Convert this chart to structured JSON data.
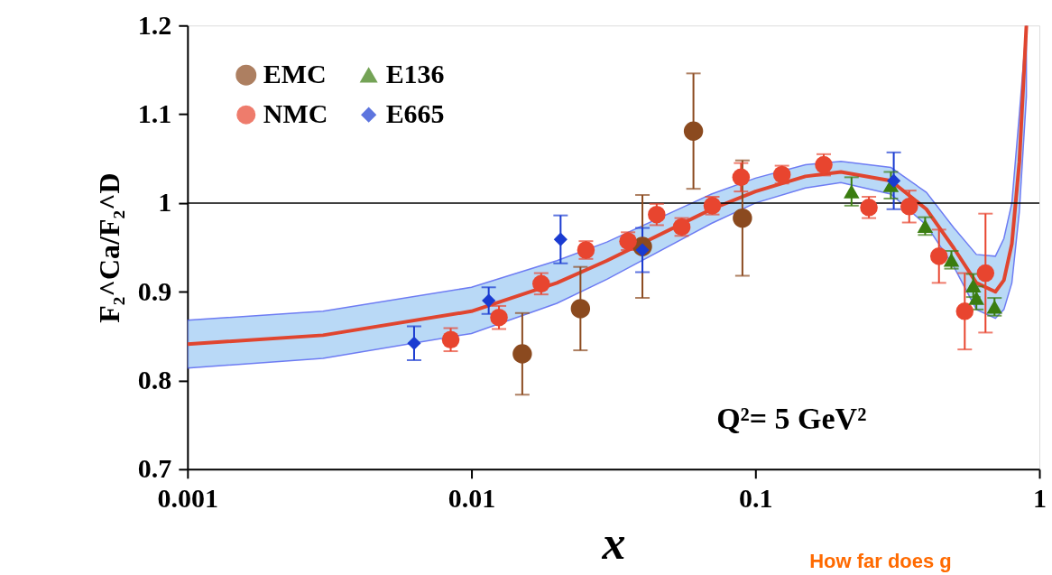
{
  "chart_data": {
    "type": "scatter",
    "xlabel": "x",
    "ylabel": "F₂^Ca/F₂^D",
    "log": "x",
    "xlim": [
      0.001,
      1
    ],
    "xticks": [
      0.001,
      0.01,
      0.1,
      1
    ],
    "ylim": [
      0.7,
      1.2
    ],
    "yticks": [
      0.7,
      0.8,
      0.9,
      1,
      1.1,
      1.2
    ],
    "grid": false,
    "legend": "top left",
    "series": [
      {
        "name": "EMC",
        "color": "#8b4a1f",
        "marker": "circle",
        "x": [
          0.0151,
          0.0242,
          0.04,
          0.0605,
          0.09
        ],
        "values": [
          0.83,
          0.881,
          0.951,
          1.081,
          0.983
        ],
        "errors": [
          0.046,
          0.047,
          0.058,
          0.065,
          0.065
        ]
      },
      {
        "name": "NMC",
        "color": "#e8452f",
        "marker": "circle",
        "x": [
          0.00845,
          0.0125,
          0.0176,
          0.0253,
          0.0356,
          0.0449,
          0.055,
          0.0705,
          0.089,
          0.124,
          0.174,
          0.251,
          0.348,
          0.443,
          0.546,
          0.646
        ],
        "values": [
          0.846,
          0.871,
          0.909,
          0.947,
          0.957,
          0.987,
          0.973,
          0.997,
          1.029,
          1.032,
          1.043,
          0.995,
          0.996,
          0.94,
          0.878,
          0.921
        ],
        "errors": [
          0.013,
          0.013,
          0.012,
          0.01,
          0.01,
          0.012,
          0.01,
          0.01,
          0.016,
          0.01,
          0.012,
          0.012,
          0.018,
          0.03,
          0.043,
          0.067
        ]
      },
      {
        "name": "E136",
        "color": "#3a7d10",
        "marker": "triangle",
        "x": [
          0.218,
          0.3,
          0.396,
          0.49,
          0.585,
          0.6,
          0.695
        ],
        "values": [
          1.013,
          1.02,
          0.974,
          0.936,
          0.907,
          0.893,
          0.883
        ],
        "errors": [
          0.016,
          0.015,
          0.01,
          0.01,
          0.013,
          0.013,
          0.01
        ]
      },
      {
        "name": "E665",
        "color": "#1a3bd1",
        "marker": "diamond",
        "x": [
          0.00628,
          0.0115,
          0.0206,
          0.04,
          0.307
        ],
        "values": [
          0.842,
          0.89,
          0.959,
          0.947,
          1.025
        ],
        "errors": [
          0.019,
          0.015,
          0.027,
          0.025,
          0.032
        ]
      },
      {
        "type": "line",
        "color": "#e0452f",
        "marker": "none",
        "x": [
          0.001,
          0.003,
          0.01,
          0.02,
          0.03,
          0.07,
          0.1,
          0.15,
          0.2,
          0.3,
          0.4,
          0.5,
          0.6,
          0.7,
          0.75,
          0.8,
          0.85,
          0.9
        ],
        "values": [
          0.841,
          0.851,
          0.878,
          0.91,
          0.935,
          0.993,
          1.013,
          1.03,
          1.035,
          1.025,
          0.993,
          0.949,
          0.91,
          0.9,
          0.913,
          0.954,
          1.046,
          1.2
        ],
        "lower": [
          0.814,
          0.825,
          0.853,
          0.887,
          0.914,
          0.977,
          1.0,
          1.017,
          1.023,
          1.01,
          0.975,
          0.928,
          0.88,
          0.87,
          0.88,
          0.91,
          0.99,
          1.12
        ],
        "upper": [
          0.868,
          0.878,
          0.905,
          0.935,
          0.956,
          1.01,
          1.028,
          1.043,
          1.047,
          1.04,
          1.012,
          0.972,
          0.942,
          0.94,
          0.96,
          1.0,
          1.1,
          1.2
        ]
      }
    ],
    "ref_lines": [
      {
        "axis": "y",
        "value": 1,
        "color": "#000000"
      }
    ],
    "annotations": [
      "Q²= 5 GeV²",
      "How far does g"
    ]
  }
}
